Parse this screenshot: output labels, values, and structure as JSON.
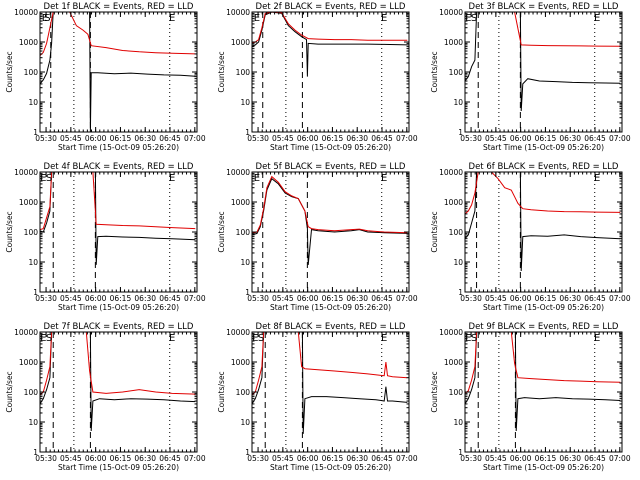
{
  "common": {
    "xlabel": "Start Time (15-Oct-09 05:26:20)",
    "ylabel": "Counts/sec",
    "x_ticks": [
      "05:30",
      "05:45",
      "06:00",
      "06:15",
      "06:30",
      "06:45",
      "07:00"
    ],
    "x_tick_minutes": [
      3.67,
      18.67,
      33.67,
      48.67,
      63.67,
      78.67,
      93.67
    ],
    "x_range_minutes": [
      0,
      95
    ],
    "y_scale": "log",
    "y_ticks": [
      "1",
      "10",
      "100",
      "1000",
      "10000"
    ],
    "y_range": [
      1,
      10000
    ],
    "series_colors": {
      "events": "#000000",
      "lld": "#e00000"
    }
  },
  "chart_data": [
    {
      "type": "line",
      "title": "Det 1f BLACK = Events, RED = LLD",
      "markers": [
        {
          "label": "E",
          "minute": 3.0
        },
        {
          "label": "S",
          "minute": 4.5
        },
        {
          "label": "E",
          "minute": 80.0
        }
      ],
      "dashed_lines_minutes": [
        6.5,
        30.5
      ],
      "dotted_lines_minutes": [
        20.5,
        78.5
      ],
      "series": [
        {
          "key": "events",
          "x": [
            0,
            2,
            4,
            6,
            7,
            8,
            10,
            14,
            18,
            22,
            26,
            30,
            30.5,
            31,
            35,
            45,
            55,
            65,
            75,
            85,
            94
          ],
          "y": [
            40,
            55,
            90,
            250,
            900,
            10000,
            10000,
            10000,
            10000,
            10000,
            10000,
            10000,
            1,
            95,
            95,
            88,
            92,
            85,
            80,
            78,
            72
          ]
        },
        {
          "key": "lld",
          "x": [
            0,
            2,
            4,
            6,
            8,
            12,
            18,
            22,
            26,
            29,
            31,
            40,
            50,
            60,
            70,
            80,
            94
          ],
          "y": [
            350,
            450,
            900,
            3000,
            10000,
            10000,
            10000,
            3500,
            2500,
            1800,
            750,
            650,
            520,
            470,
            440,
            420,
            400
          ]
        }
      ]
    },
    {
      "type": "line",
      "title": "Det 2f BLACK = Events, RED = LLD",
      "markers": [
        {
          "label": "E",
          "minute": 3.0
        },
        {
          "label": "E",
          "minute": 80.0
        }
      ],
      "dashed_lines_minutes": [
        6.5,
        30.5
      ],
      "dotted_lines_minutes": [
        20.5,
        78.5
      ],
      "series": [
        {
          "key": "events",
          "x": [
            0,
            2,
            4,
            6,
            8,
            12,
            18,
            22,
            26,
            30,
            33,
            33.5,
            34,
            40,
            50,
            60,
            70,
            80,
            94
          ],
          "y": [
            700,
            800,
            1000,
            2500,
            8000,
            10000,
            9000,
            3500,
            2200,
            1500,
            1200,
            70,
            900,
            850,
            850,
            850,
            850,
            830,
            800
          ]
        },
        {
          "key": "lld",
          "x": [
            0,
            2,
            4,
            6,
            8,
            12,
            18,
            22,
            26,
            30,
            34,
            40,
            50,
            60,
            70,
            80,
            94
          ],
          "y": [
            900,
            1000,
            1200,
            3000,
            9000,
            10000,
            9500,
            4000,
            2500,
            1700,
            1300,
            1250,
            1200,
            1200,
            1150,
            1150,
            1150
          ]
        }
      ]
    },
    {
      "type": "line",
      "title": "Det 3f BLACK = Events, RED = LLD",
      "markers": [
        {
          "label": "E",
          "minute": 2.0
        },
        {
          "label": "S",
          "minute": 5.5
        },
        {
          "label": "E",
          "minute": 80.0
        }
      ],
      "dashed_lines_minutes": [
        8.0,
        33.5
      ],
      "dotted_lines_minutes": [
        20.5,
        78.5
      ],
      "series": [
        {
          "key": "events",
          "x": [
            0,
            2,
            4,
            6,
            7,
            33.5,
            34,
            35,
            38,
            45,
            55,
            65,
            75,
            85,
            94
          ],
          "y": [
            50,
            70,
            150,
            250,
            10000,
            10000,
            5,
            40,
            60,
            50,
            48,
            45,
            44,
            43,
            42
          ]
        },
        {
          "key": "lld",
          "x": [
            0,
            2,
            5,
            7,
            10,
            20,
            30,
            34,
            40,
            50,
            60,
            70,
            80,
            94
          ],
          "y": [
            10000,
            10000,
            10000,
            10000,
            10000,
            10000,
            10000,
            800,
            780,
            760,
            750,
            740,
            730,
            720
          ]
        }
      ]
    },
    {
      "type": "line",
      "title": "Det 4f BLACK = Events, RED = LLD",
      "markers": [
        {
          "label": "E",
          "minute": 2.0
        },
        {
          "label": "S",
          "minute": 5.5
        },
        {
          "label": "E",
          "minute": 80.0
        }
      ],
      "dashed_lines_minutes": [
        8.0,
        33.5
      ],
      "dotted_lines_minutes": [
        20.5,
        78.5
      ],
      "series": [
        {
          "key": "events",
          "x": [
            0,
            2,
            4,
            6,
            7,
            33.5,
            34,
            35,
            40,
            50,
            60,
            70,
            80,
            94
          ],
          "y": [
            110,
            100,
            200,
            500,
            10000,
            10000,
            8,
            70,
            72,
            68,
            66,
            62,
            60,
            55
          ]
        },
        {
          "key": "lld",
          "x": [
            0,
            2,
            4,
            6,
            7,
            32,
            34,
            40,
            50,
            60,
            70,
            80,
            94
          ],
          "y": [
            120,
            130,
            300,
            700,
            10000,
            10000,
            180,
            175,
            165,
            160,
            150,
            140,
            130
          ]
        }
      ]
    },
    {
      "type": "line",
      "title": "Det 5f BLACK = Events, RED = LLD",
      "markers": [
        {
          "label": "E",
          "minute": 3.0
        },
        {
          "label": "E",
          "minute": 80.0
        }
      ],
      "dashed_lines_minutes": [
        6.5,
        33.5
      ],
      "dotted_lines_minutes": [
        20.5,
        78.5
      ],
      "series": [
        {
          "key": "events",
          "x": [
            0,
            3,
            5,
            7,
            9,
            12,
            16,
            20,
            24,
            28,
            32,
            33.5,
            34,
            36,
            40,
            50,
            60,
            65,
            70,
            80,
            94
          ],
          "y": [
            80,
            90,
            150,
            500,
            2500,
            6000,
            4000,
            2000,
            1500,
            1300,
            500,
            130,
            8,
            120,
            110,
            100,
            110,
            120,
            100,
            95,
            90
          ]
        },
        {
          "key": "lld",
          "x": [
            0,
            3,
            5,
            7,
            9,
            12,
            16,
            20,
            24,
            28,
            32,
            34,
            36,
            40,
            50,
            60,
            65,
            70,
            80,
            94
          ],
          "y": [
            90,
            100,
            170,
            600,
            3000,
            7000,
            4500,
            2200,
            1600,
            1300,
            500,
            150,
            130,
            120,
            110,
            120,
            125,
            110,
            100,
            95
          ]
        }
      ]
    },
    {
      "type": "line",
      "title": "Det 6f BLACK = Events, RED = LLD",
      "markers": [
        {
          "label": "E",
          "minute": 80.0
        }
      ],
      "dashed_lines_minutes": [
        7.0,
        33.5
      ],
      "dotted_lines_minutes": [
        20.5,
        78.5
      ],
      "series": [
        {
          "key": "events",
          "x": [
            0,
            2,
            4,
            6,
            7,
            33.5,
            34,
            35,
            40,
            50,
            60,
            70,
            80,
            94
          ],
          "y": [
            60,
            80,
            200,
            500,
            10000,
            10000,
            5,
            70,
            75,
            72,
            80,
            70,
            65,
            60
          ]
        },
        {
          "key": "lld",
          "x": [
            0,
            2,
            4,
            6,
            8,
            12,
            16,
            20,
            24,
            28,
            30,
            32,
            35,
            40,
            50,
            60,
            70,
            80,
            94
          ],
          "y": [
            400,
            500,
            800,
            2000,
            10000,
            10000,
            10000,
            6000,
            3000,
            2500,
            1500,
            900,
            600,
            550,
            500,
            480,
            470,
            460,
            450
          ]
        }
      ]
    },
    {
      "type": "line",
      "title": "Det 7f BLACK = Events, RED = LLD",
      "markers": [
        {
          "label": "E",
          "minute": 2.0
        },
        {
          "label": "S",
          "minute": 5.5
        },
        {
          "label": "E",
          "minute": 80.0
        }
      ],
      "dashed_lines_minutes": [
        8.0,
        30.5
      ],
      "dotted_lines_minutes": [
        20.5,
        78.5
      ],
      "series": [
        {
          "key": "events",
          "x": [
            0,
            2,
            4,
            6,
            7,
            30.5,
            31,
            32,
            36,
            45,
            55,
            65,
            75,
            85,
            94
          ],
          "y": [
            40,
            60,
            120,
            300,
            10000,
            10000,
            5,
            50,
            60,
            55,
            60,
            58,
            55,
            50,
            48
          ]
        },
        {
          "key": "lld",
          "x": [
            0,
            2,
            4,
            6,
            7,
            28,
            30,
            32,
            40,
            50,
            60,
            70,
            80,
            94
          ],
          "y": [
            80,
            100,
            250,
            700,
            10000,
            10000,
            500,
            100,
            90,
            100,
            120,
            100,
            90,
            85
          ]
        }
      ]
    },
    {
      "type": "line",
      "title": "Det 8f BLACK = Events, RED = LLD",
      "markers": [
        {
          "label": "E",
          "minute": 2.0
        },
        {
          "label": "S",
          "minute": 5.5
        },
        {
          "label": "E",
          "minute": 80.0
        }
      ],
      "dashed_lines_minutes": [
        8.0,
        30.5
      ],
      "dotted_lines_minutes": [
        20.5,
        78.5
      ],
      "series": [
        {
          "key": "events",
          "x": [
            0,
            2,
            4,
            6,
            7,
            30.5,
            31,
            32,
            36,
            45,
            55,
            65,
            75,
            80,
            81,
            82,
            85,
            94
          ],
          "y": [
            40,
            60,
            120,
            300,
            10000,
            10000,
            4,
            60,
            70,
            70,
            65,
            60,
            55,
            50,
            150,
            50,
            50,
            45
          ]
        },
        {
          "key": "lld",
          "x": [
            0,
            2,
            4,
            6,
            7,
            28,
            30,
            32,
            40,
            50,
            60,
            70,
            80,
            81,
            82,
            85,
            94
          ],
          "y": [
            80,
            100,
            250,
            700,
            10000,
            10000,
            700,
            600,
            550,
            500,
            450,
            400,
            350,
            1000,
            350,
            320,
            300
          ]
        }
      ]
    },
    {
      "type": "line",
      "title": "Det 9f BLACK = Events, RED = LLD",
      "markers": [
        {
          "label": "E",
          "minute": 2.0
        },
        {
          "label": "S",
          "minute": 5.5
        },
        {
          "label": "E",
          "minute": 80.0
        }
      ],
      "dashed_lines_minutes": [
        8.0,
        30.5
      ],
      "dotted_lines_minutes": [
        20.5,
        78.5
      ],
      "series": [
        {
          "key": "events",
          "x": [
            0,
            2,
            4,
            6,
            7,
            30.5,
            31,
            32,
            36,
            45,
            55,
            65,
            75,
            85,
            94
          ],
          "y": [
            40,
            60,
            120,
            300,
            10000,
            10000,
            5,
            60,
            65,
            60,
            65,
            60,
            58,
            55,
            52
          ]
        },
        {
          "key": "lld",
          "x": [
            0,
            2,
            4,
            6,
            7,
            28,
            30,
            32,
            40,
            50,
            60,
            70,
            80,
            94
          ],
          "y": [
            90,
            110,
            250,
            700,
            10000,
            10000,
            900,
            300,
            280,
            260,
            240,
            230,
            220,
            210
          ]
        }
      ]
    }
  ]
}
